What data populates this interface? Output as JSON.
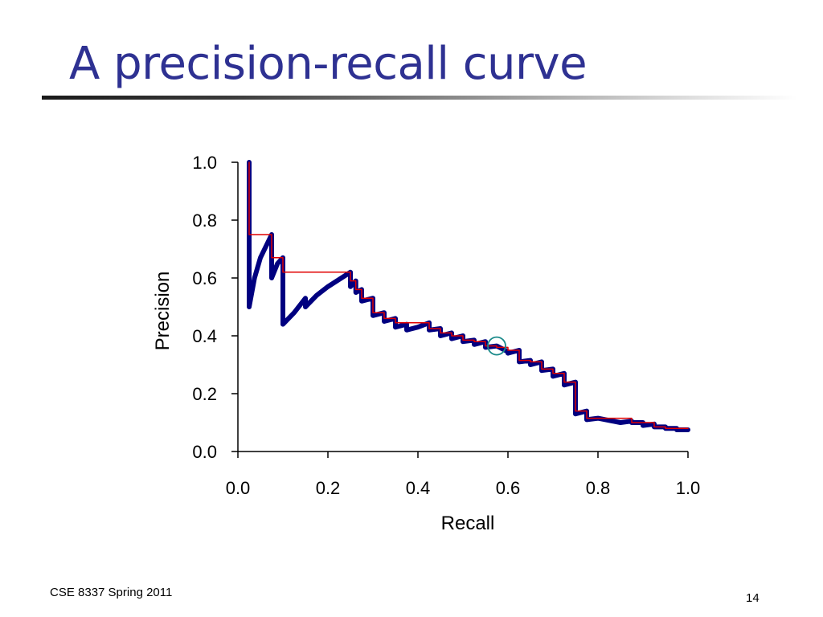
{
  "slide": {
    "title": "A precision-recall curve",
    "footer_left": "CSE 8337 Spring 2011",
    "page_number": "14",
    "title_color": "#2e3192"
  },
  "chart_data": {
    "type": "line",
    "xlabel": "Recall",
    "ylabel": "Precision",
    "xlim": [
      0,
      1
    ],
    "ylim": [
      0,
      1
    ],
    "xticks": [
      "0.0",
      "0.2",
      "0.4",
      "0.6",
      "0.8",
      "1.0"
    ],
    "yticks": [
      "0.0",
      "0.2",
      "0.4",
      "0.6",
      "0.8",
      "1.0"
    ],
    "grid": false,
    "legend": "none",
    "series": [
      {
        "color": "#000080",
        "x": [
          0.025,
          0.025,
          0.025,
          0.037,
          0.05,
          0.075,
          0.075,
          0.088,
          0.1,
          0.1,
          0.125,
          0.15,
          0.15,
          0.175,
          0.2,
          0.25,
          0.25,
          0.262,
          0.262,
          0.275,
          0.275,
          0.3,
          0.3,
          0.325,
          0.325,
          0.35,
          0.35,
          0.375,
          0.375,
          0.4,
          0.425,
          0.425,
          0.45,
          0.45,
          0.475,
          0.475,
          0.5,
          0.5,
          0.525,
          0.525,
          0.55,
          0.55,
          0.575,
          0.6,
          0.6,
          0.625,
          0.625,
          0.65,
          0.65,
          0.675,
          0.675,
          0.7,
          0.7,
          0.725,
          0.725,
          0.75,
          0.75,
          0.775,
          0.775,
          0.8,
          0.85,
          0.875,
          0.875,
          0.9,
          0.9,
          0.925,
          0.925,
          0.95,
          0.95,
          0.975,
          0.975,
          1.0
        ],
        "y": [
          1.0,
          0.5,
          0.5,
          0.6,
          0.67,
          0.75,
          0.6,
          0.65,
          0.67,
          0.44,
          0.48,
          0.53,
          0.5,
          0.54,
          0.57,
          0.62,
          0.57,
          0.59,
          0.55,
          0.56,
          0.52,
          0.53,
          0.47,
          0.48,
          0.45,
          0.46,
          0.43,
          0.44,
          0.42,
          0.43,
          0.445,
          0.42,
          0.425,
          0.4,
          0.41,
          0.39,
          0.4,
          0.38,
          0.385,
          0.37,
          0.38,
          0.36,
          0.365,
          0.345,
          0.34,
          0.35,
          0.31,
          0.315,
          0.3,
          0.31,
          0.28,
          0.285,
          0.26,
          0.27,
          0.23,
          0.24,
          0.13,
          0.14,
          0.11,
          0.115,
          0.1,
          0.105,
          0.1,
          0.1,
          0.09,
          0.095,
          0.085,
          0.085,
          0.08,
          0.08,
          0.075,
          0.075
        ]
      },
      {
        "color": "#e00000",
        "x": [
          0.025,
          0.025,
          0.075,
          0.075,
          0.1,
          0.1,
          0.25,
          0.25,
          0.262,
          0.262,
          0.275,
          0.275,
          0.3,
          0.3,
          0.325,
          0.325,
          0.35,
          0.35,
          0.425,
          0.425,
          0.45,
          0.45,
          0.475,
          0.475,
          0.5,
          0.5,
          0.525,
          0.525,
          0.55,
          0.55,
          0.575,
          0.575,
          0.6,
          0.6,
          0.625,
          0.625,
          0.65,
          0.65,
          0.675,
          0.675,
          0.7,
          0.7,
          0.725,
          0.725,
          0.75,
          0.75,
          0.775,
          0.775,
          0.875,
          0.875,
          0.925,
          0.925,
          0.95,
          0.95,
          1.0
        ],
        "y": [
          1.0,
          0.75,
          0.75,
          0.67,
          0.67,
          0.62,
          0.62,
          0.59,
          0.59,
          0.56,
          0.56,
          0.53,
          0.53,
          0.48,
          0.48,
          0.46,
          0.46,
          0.445,
          0.445,
          0.425,
          0.425,
          0.41,
          0.41,
          0.4,
          0.4,
          0.385,
          0.385,
          0.38,
          0.38,
          0.365,
          0.365,
          0.36,
          0.36,
          0.35,
          0.35,
          0.315,
          0.315,
          0.31,
          0.31,
          0.285,
          0.285,
          0.27,
          0.27,
          0.24,
          0.24,
          0.14,
          0.14,
          0.115,
          0.115,
          0.1,
          0.1,
          0.085,
          0.085,
          0.08,
          0.08
        ]
      }
    ],
    "annotations": [
      {
        "type": "circle",
        "x": 0.575,
        "y": 0.365,
        "color": "#1a8a8a"
      }
    ]
  }
}
